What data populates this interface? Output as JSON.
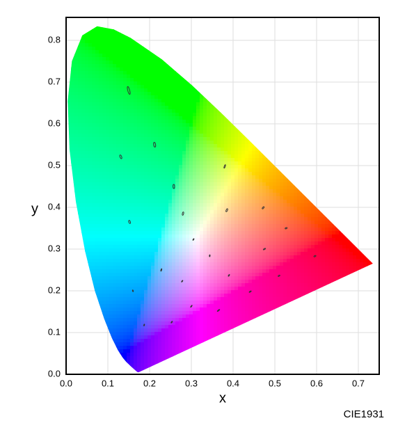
{
  "chart_data": {
    "type": "ellipse",
    "xlabel": "x",
    "ylabel": "y",
    "caption": "CIE1931",
    "xlim": [
      0,
      0.75
    ],
    "ylim": [
      0,
      0.855
    ],
    "xticks": [
      {
        "value": 0,
        "label": "0.0"
      },
      {
        "value": 0.1,
        "label": "0.1"
      },
      {
        "value": 0.2,
        "label": "0.2"
      },
      {
        "value": 0.3,
        "label": "0.3"
      },
      {
        "value": 0.4,
        "label": "0.4"
      },
      {
        "value": 0.5,
        "label": "0.5"
      },
      {
        "value": 0.6,
        "label": "0.6"
      },
      {
        "value": 0.7,
        "label": "0.7"
      }
    ],
    "yticks": [
      {
        "value": 0,
        "label": "0.0"
      },
      {
        "value": 0.1,
        "label": "0.1"
      },
      {
        "value": 0.2,
        "label": "0.2"
      },
      {
        "value": 0.3,
        "label": "0.3"
      },
      {
        "value": 0.4,
        "label": "0.4"
      },
      {
        "value": 0.5,
        "label": "0.5"
      },
      {
        "value": 0.6,
        "label": "0.6"
      },
      {
        "value": 0.7,
        "label": "0.7"
      },
      {
        "value": 0.8,
        "label": "0.8"
      }
    ],
    "grid": true,
    "color": "#333333",
    "locus": {
      "x": [
        0.1741,
        0.1733,
        0.1714,
        0.1689,
        0.1644,
        0.1566,
        0.144,
        0.1355,
        0.1241,
        0.1096,
        0.0913,
        0.0687,
        0.0454,
        0.0235,
        0.0082,
        0.0039,
        0.0139,
        0.0389,
        0.0743,
        0.1142,
        0.1547,
        0.2296,
        0.3016,
        0.3731,
        0.4441,
        0.5125,
        0.5752,
        0.627,
        0.6658,
        0.6915,
        0.719,
        0.73,
        0.7347
      ],
      "y": [
        0.005,
        0.0048,
        0.0051,
        0.0069,
        0.0109,
        0.0177,
        0.0297,
        0.0399,
        0.0578,
        0.0868,
        0.1327,
        0.2007,
        0.295,
        0.4127,
        0.5384,
        0.6548,
        0.7502,
        0.812,
        0.8338,
        0.8262,
        0.8059,
        0.7543,
        0.6923,
        0.6245,
        0.5547,
        0.4866,
        0.4242,
        0.3725,
        0.334,
        0.3083,
        0.2809,
        0.27,
        0.2653
      ]
    },
    "ellipses": {
      "x": [
        0.187,
        0.253,
        0.15,
        0.131,
        0.212,
        0.258,
        0.152,
        0.28,
        0.38,
        0.16,
        0.228,
        0.305,
        0.385,
        0.472,
        0.527,
        0.475,
        0.51,
        0.596,
        0.344,
        0.39,
        0.441,
        0.278,
        0.3,
        0.365
      ],
      "y": [
        0.118,
        0.125,
        0.68,
        0.521,
        0.55,
        0.45,
        0.365,
        0.385,
        0.498,
        0.2,
        0.25,
        0.323,
        0.393,
        0.399,
        0.35,
        0.3,
        0.236,
        0.283,
        0.284,
        0.237,
        0.198,
        0.223,
        0.163,
        0.153
      ],
      "a": [
        0.0022,
        0.0025,
        0.0096,
        0.0047,
        0.0058,
        0.005,
        0.0038,
        0.004,
        0.0044,
        0.0021,
        0.0031,
        0.0023,
        0.0038,
        0.0032,
        0.0026,
        0.0029,
        0.0024,
        0.0026,
        0.0023,
        0.0025,
        0.0028,
        0.0024,
        0.0029,
        0.0036
      ],
      "b": [
        0.00055,
        0.0005,
        0.0023,
        0.002,
        0.0023,
        0.002,
        0.0019,
        0.0015,
        0.0012,
        0.00095,
        0.0009,
        0.0009,
        0.0016,
        0.0014,
        0.0013,
        0.0011,
        0.0012,
        0.0013,
        0.0009,
        0.001,
        0.00095,
        0.00055,
        0.0006,
        0.00095
      ],
      "theta": [
        77,
        55.5,
        105,
        112.5,
        100,
        92,
        110,
        75.5,
        70,
        104,
        72,
        58,
        65.5,
        51,
        20,
        29.5,
        33.5,
        26,
        85,
        58,
        31.5,
        53.5,
        54,
        40
      ]
    }
  }
}
